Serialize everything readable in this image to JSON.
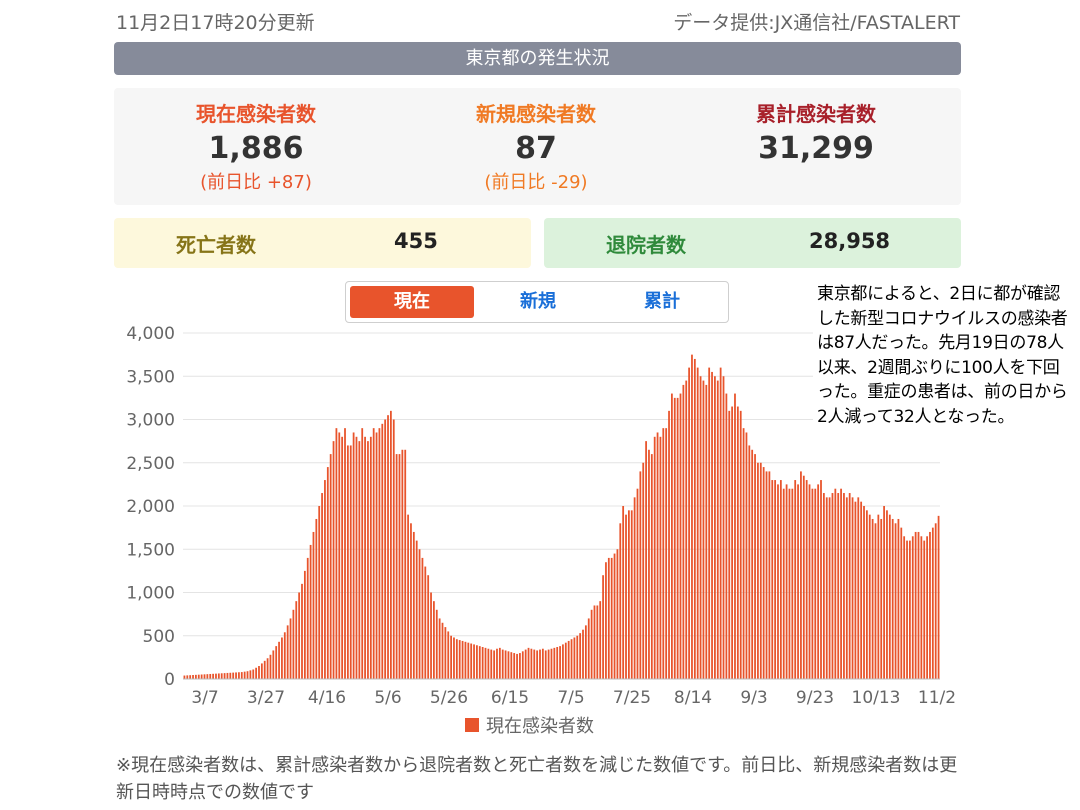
{
  "header": {
    "updated": "11月2日17時20分更新",
    "source": "データ提供:JX通信社/FASTALERT",
    "title": "東京都の発生状況"
  },
  "stats": {
    "current": {
      "label": "現在感染者数",
      "value": "1,886",
      "diff": "(前日比 +87)"
    },
    "new": {
      "label": "新規感染者数",
      "value": "87",
      "diff": "(前日比 -29)"
    },
    "total": {
      "label": "累計感染者数",
      "value": "31,299"
    }
  },
  "deaths": {
    "label": "死亡者数",
    "value": "455"
  },
  "recovered": {
    "label": "退院者数",
    "value": "28,958"
  },
  "tabs": [
    {
      "label": "現在",
      "active": true
    },
    {
      "label": "新規",
      "active": false
    },
    {
      "label": "累計",
      "active": false
    }
  ],
  "note": "東京都によると、2日に都が確認した新型コロナウイルスの感染者は87人だった。先月19日の78人以来、2週間ぶりに100人を下回った。重症の患者は、前の日から2人減って32人となった。",
  "footnote": "※現在感染者数は、累計感染者数から退院者数と死亡者数を減じた数値です。前日比、新規感染者数は更新日時時点での数値です",
  "colors": {
    "bar": "#e8542c",
    "header": "#868b9a"
  },
  "chart_data": {
    "type": "bar",
    "ylim": [
      0,
      4000
    ],
    "yticks": [
      0,
      500,
      1000,
      1500,
      2000,
      2500,
      3000,
      3500,
      4000
    ],
    "xticks": [
      "3/7",
      "3/27",
      "4/16",
      "5/6",
      "5/26",
      "6/15",
      "7/5",
      "7/25",
      "8/14",
      "9/3",
      "9/23",
      "10/13",
      "11/2"
    ],
    "grid": true,
    "legend": {
      "label": "現在感染者数",
      "position": "bottom"
    },
    "series": [
      {
        "name": "現在感染者数",
        "values": [
          40,
          42,
          44,
          46,
          48,
          50,
          52,
          54,
          56,
          58,
          60,
          62,
          64,
          66,
          68,
          70,
          72,
          74,
          76,
          78,
          80,
          85,
          90,
          100,
          110,
          130,
          150,
          180,
          210,
          240,
          280,
          330,
          380,
          430,
          480,
          540,
          620,
          700,
          800,
          900,
          1000,
          1100,
          1250,
          1400,
          1550,
          1700,
          1850,
          2000,
          2150,
          2300,
          2450,
          2600,
          2750,
          2900,
          2850,
          2800,
          2900,
          2700,
          2700,
          2850,
          2800,
          2750,
          2900,
          2800,
          2750,
          2800,
          2900,
          2850,
          2900,
          2950,
          3000,
          3050,
          3100,
          3000,
          2600,
          2600,
          2650,
          2650,
          1900,
          1800,
          1700,
          1600,
          1500,
          1400,
          1300,
          1200,
          1000,
          900,
          800,
          700,
          650,
          600,
          550,
          500,
          480,
          460,
          450,
          440,
          430,
          420,
          410,
          400,
          390,
          380,
          370,
          360,
          350,
          340,
          330,
          350,
          360,
          340,
          330,
          320,
          310,
          300,
          290,
          300,
          320,
          340,
          360,
          350,
          340,
          330,
          340,
          350,
          330,
          340,
          350,
          360,
          370,
          380,
          400,
          420,
          440,
          460,
          480,
          500,
          530,
          570,
          620,
          700,
          800,
          850,
          850,
          900,
          1200,
          1350,
          1400,
          1400,
          1450,
          1500,
          1800,
          2000,
          1900,
          1950,
          1950,
          2100,
          2200,
          2400,
          2500,
          2750,
          2650,
          2600,
          2800,
          2850,
          2800,
          2900,
          2900,
          3100,
          3300,
          3250,
          3250,
          3300,
          3400,
          3450,
          3600,
          3750,
          3700,
          3600,
          3500,
          3450,
          3400,
          3600,
          3550,
          3500,
          3450,
          3600,
          3500,
          3300,
          3100,
          3150,
          3300,
          3150,
          3100,
          2900,
          2850,
          2700,
          2650,
          2600,
          2500,
          2500,
          2450,
          2400,
          2400,
          2300,
          2300,
          2250,
          2300,
          2200,
          2250,
          2200,
          2200,
          2300,
          2250,
          2400,
          2350,
          2300,
          2250,
          2200,
          2200,
          2250,
          2300,
          2150,
          2100,
          2100,
          2150,
          2200,
          2150,
          2200,
          2150,
          2100,
          2150,
          2100,
          2050,
          2100,
          2050,
          2000,
          1950,
          1900,
          1850,
          1800,
          1900,
          1850,
          2000,
          1950,
          1900,
          1850,
          1800,
          1850,
          1750,
          1650,
          1600,
          1600,
          1650,
          1700,
          1700,
          1650,
          1600,
          1650,
          1700,
          1750,
          1800,
          1886
        ]
      }
    ]
  }
}
